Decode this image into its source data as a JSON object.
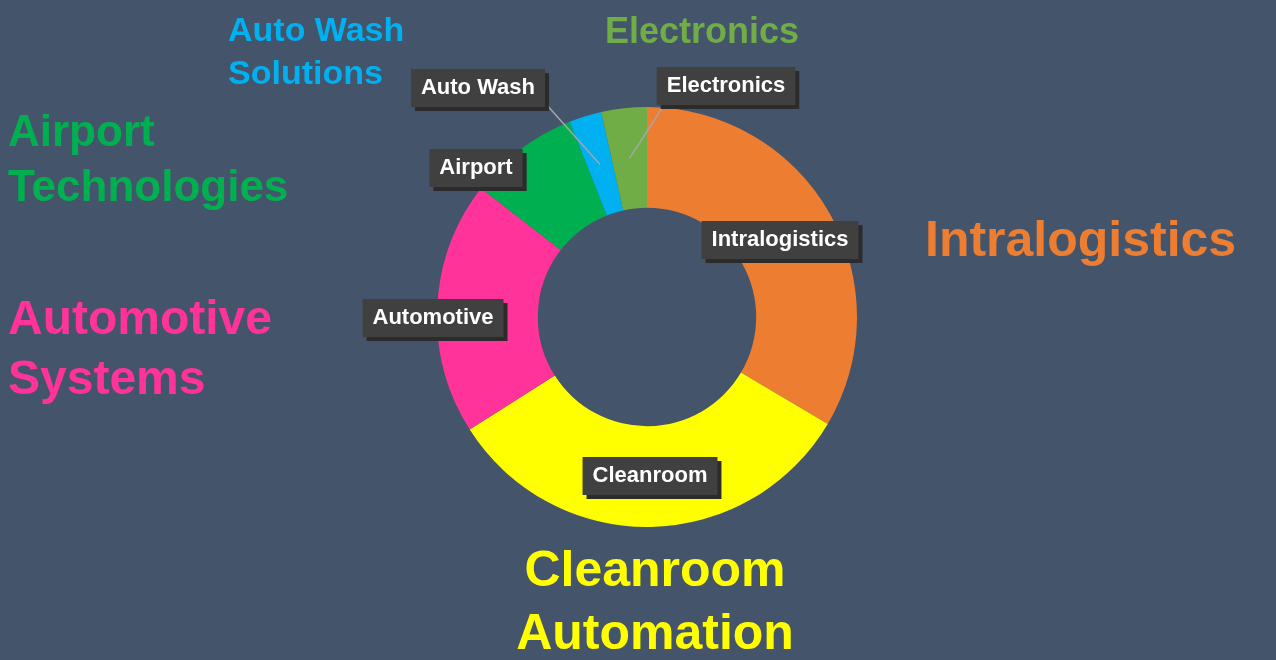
{
  "chart_data": {
    "type": "donut",
    "categories": [
      "Intralogistics",
      "Cleanroom",
      "Automotive",
      "Airport",
      "Auto Wash",
      "Electronics"
    ],
    "values": [
      33.5,
      32.5,
      19.5,
      8.5,
      2.5,
      3.5
    ],
    "colors": [
      "#ed7d31",
      "#ffff00",
      "#ff3399",
      "#00b050",
      "#00b0f0",
      "#70ad47"
    ],
    "annotations": [
      "Intralogistics",
      "Cleanroom Automation",
      "Automotive Systems",
      "Airport Technologies",
      "Auto Wash Solutions",
      "Electronics"
    ],
    "legend": false
  }
}
